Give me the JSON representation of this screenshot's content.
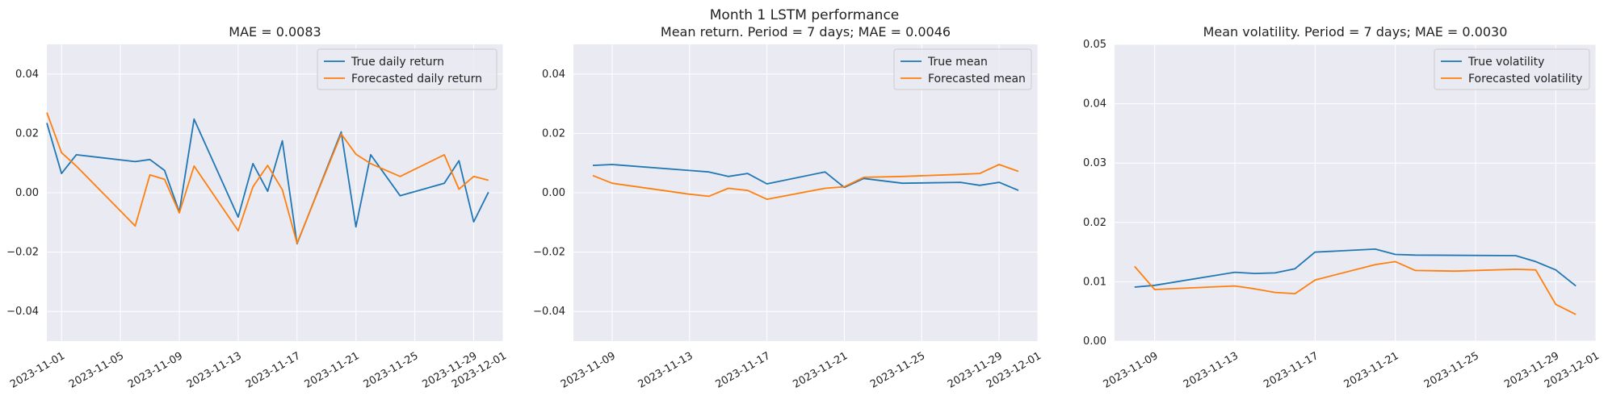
{
  "figure": {
    "suptitle": "Month 1 LSTM performance"
  },
  "colors": {
    "true": "#1f77b4",
    "forecast": "#ff7f0e",
    "axes_bg": "#eaeaf2",
    "grid": "#ffffff"
  },
  "chart_data": [
    {
      "type": "line",
      "title": "MAE = 0.0083",
      "xlabel": "",
      "ylabel": "",
      "x_type": "date",
      "xlim": [
        "2023-10-31",
        "2023-12-01"
      ],
      "ylim": [
        -0.05,
        0.05
      ],
      "x_ticks": [
        "2023-11-01",
        "2023-11-05",
        "2023-11-09",
        "2023-11-13",
        "2023-11-17",
        "2023-11-21",
        "2023-11-25",
        "2023-11-29",
        "2023-12-01"
      ],
      "y_ticks": [
        -0.04,
        -0.02,
        0.0,
        0.02,
        0.04
      ],
      "y_tick_labels": [
        "−0.04",
        "−0.02",
        "0.00",
        "0.02",
        "0.04"
      ],
      "grid": true,
      "legend_position": "top-right",
      "series": [
        {
          "name": "True daily return",
          "color": "#1f77b4",
          "x": [
            "2023-10-31",
            "2023-11-01",
            "2023-11-02",
            "2023-11-06",
            "2023-11-07",
            "2023-11-08",
            "2023-11-09",
            "2023-11-10",
            "2023-11-13",
            "2023-11-14",
            "2023-11-15",
            "2023-11-16",
            "2023-11-17",
            "2023-11-20",
            "2023-11-21",
            "2023-11-22",
            "2023-11-24",
            "2023-11-27",
            "2023-11-28",
            "2023-11-29",
            "2023-11-30"
          ],
          "y": [
            0.0235,
            0.0065,
            0.0128,
            0.0105,
            0.0112,
            0.0075,
            -0.0065,
            0.0248,
            -0.0082,
            0.0098,
            0.0005,
            0.0175,
            -0.0172,
            0.0205,
            -0.0115,
            0.0128,
            -0.001,
            0.0032,
            0.0108,
            -0.0098,
            0.0002
          ]
        },
        {
          "name": "Forecasted daily return",
          "color": "#ff7f0e",
          "x": [
            "2023-10-31",
            "2023-11-01",
            "2023-11-02",
            "2023-11-06",
            "2023-11-07",
            "2023-11-08",
            "2023-11-09",
            "2023-11-10",
            "2023-11-13",
            "2023-11-14",
            "2023-11-15",
            "2023-11-16",
            "2023-11-17",
            "2023-11-20",
            "2023-11-21",
            "2023-11-22",
            "2023-11-24",
            "2023-11-27",
            "2023-11-28",
            "2023-11-29",
            "2023-11-30"
          ],
          "y": [
            0.027,
            0.0135,
            0.009,
            -0.0112,
            0.006,
            0.0045,
            -0.0068,
            0.009,
            -0.0128,
            0.002,
            0.0092,
            0.001,
            -0.017,
            0.0198,
            0.013,
            0.0098,
            0.0055,
            0.0128,
            0.0012,
            0.0055,
            0.0042
          ]
        }
      ]
    },
    {
      "type": "line",
      "title": "Mean return. Period = 7 days; MAE = 0.0046",
      "xlabel": "",
      "ylabel": "",
      "x_type": "date",
      "xlim": [
        "2023-11-07",
        "2023-12-01"
      ],
      "ylim": [
        -0.05,
        0.05
      ],
      "x_ticks": [
        "2023-11-09",
        "2023-11-13",
        "2023-11-17",
        "2023-11-21",
        "2023-11-25",
        "2023-11-29",
        "2023-12-01"
      ],
      "y_ticks": [
        -0.04,
        -0.02,
        0.0,
        0.02,
        0.04
      ],
      "y_tick_labels": [
        "−0.04",
        "−0.02",
        "0.00",
        "0.02",
        "0.04"
      ],
      "grid": true,
      "legend_position": "top-right",
      "series": [
        {
          "name": "True mean",
          "color": "#1f77b4",
          "x": [
            "2023-11-08",
            "2023-11-09",
            "2023-11-13",
            "2023-11-14",
            "2023-11-15",
            "2023-11-16",
            "2023-11-17",
            "2023-11-20",
            "2023-11-21",
            "2023-11-22",
            "2023-11-24",
            "2023-11-27",
            "2023-11-28",
            "2023-11-29",
            "2023-11-30"
          ],
          "y": [
            0.0092,
            0.0095,
            0.0075,
            0.007,
            0.0055,
            0.0065,
            0.003,
            0.007,
            0.0018,
            0.0048,
            0.0032,
            0.0035,
            0.0025,
            0.0035,
            0.0008
          ]
        },
        {
          "name": "Forecasted mean",
          "color": "#ff7f0e",
          "x": [
            "2023-11-08",
            "2023-11-09",
            "2023-11-13",
            "2023-11-14",
            "2023-11-15",
            "2023-11-16",
            "2023-11-17",
            "2023-11-20",
            "2023-11-21",
            "2023-11-22",
            "2023-11-24",
            "2023-11-27",
            "2023-11-28",
            "2023-11-29",
            "2023-11-30"
          ],
          "y": [
            0.0058,
            0.0032,
            -0.0005,
            -0.0012,
            0.0015,
            0.0008,
            -0.0022,
            0.0015,
            0.002,
            0.0052,
            0.0055,
            0.0062,
            0.0065,
            0.0095,
            0.0072
          ]
        }
      ]
    },
    {
      "type": "line",
      "title": "Mean volatility. Period = 7 days; MAE = 0.0030",
      "xlabel": "",
      "ylabel": "",
      "x_type": "date",
      "xlim": [
        "2023-11-07",
        "2023-12-01"
      ],
      "ylim": [
        0.0,
        0.05
      ],
      "x_ticks": [
        "2023-11-09",
        "2023-11-13",
        "2023-11-17",
        "2023-11-21",
        "2023-11-25",
        "2023-11-29",
        "2023-12-01"
      ],
      "y_ticks": [
        0.0,
        0.01,
        0.02,
        0.03,
        0.04,
        0.05
      ],
      "y_tick_labels": [
        "0.00",
        "0.01",
        "0.02",
        "0.03",
        "0.04",
        "0.05"
      ],
      "grid": true,
      "legend_position": "top-right",
      "series": [
        {
          "name": "True volatility",
          "color": "#1f77b4",
          "x": [
            "2023-11-08",
            "2023-11-09",
            "2023-11-13",
            "2023-11-14",
            "2023-11-15",
            "2023-11-16",
            "2023-11-17",
            "2023-11-20",
            "2023-11-21",
            "2023-11-22",
            "2023-11-27",
            "2023-11-28",
            "2023-11-29",
            "2023-11-30"
          ],
          "y": [
            0.0091,
            0.0094,
            0.0116,
            0.0114,
            0.0115,
            0.0122,
            0.015,
            0.0155,
            0.0146,
            0.0145,
            0.0144,
            0.0134,
            0.012,
            0.0093
          ]
        },
        {
          "name": "Forecasted volatility",
          "color": "#ff7f0e",
          "x": [
            "2023-11-08",
            "2023-11-09",
            "2023-11-13",
            "2023-11-14",
            "2023-11-15",
            "2023-11-16",
            "2023-11-17",
            "2023-11-20",
            "2023-11-21",
            "2023-11-22",
            "2023-11-24",
            "2023-11-27",
            "2023-11-28",
            "2023-11-29",
            "2023-11-30"
          ],
          "y": [
            0.0126,
            0.0087,
            0.0093,
            0.0088,
            0.0082,
            0.008,
            0.0103,
            0.0129,
            0.0134,
            0.0119,
            0.0118,
            0.0121,
            0.012,
            0.0062,
            0.0045
          ]
        }
      ]
    }
  ]
}
